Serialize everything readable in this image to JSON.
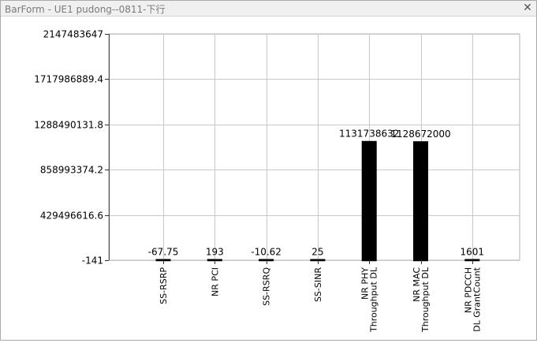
{
  "window": {
    "title": "BarForm - UE1 pudong--0811-下行",
    "close_glyph": "✕",
    "close_icon": "close-icon"
  },
  "chart_data": {
    "type": "bar",
    "title": "",
    "xlabel": "",
    "ylabel": "",
    "categories": [
      "SS-RSRP",
      "NR PCI",
      "SS-RSRQ",
      "SS-SINR",
      "NR PHY Throughput DL",
      "NR MAC Throughput DL",
      "NR PDCCH DL GrantCount"
    ],
    "values": [
      -67.75,
      193,
      -10.62,
      25,
      1131738632,
      1128672000,
      1601
    ],
    "value_labels": [
      "-67.75",
      "193",
      "-10.62",
      "25",
      "1131738632",
      "1128672000",
      "1601"
    ],
    "ylim": [
      -141,
      2147483647
    ],
    "yticks": [
      -141,
      429496616.6,
      858993374.2,
      1288490131.8,
      1717986889.4,
      2147483647
    ],
    "ytick_labels": [
      "-141",
      "429496616.6",
      "858993374.2",
      "1288490131.8",
      "1717986889.4",
      "2147483647"
    ],
    "grid": true,
    "legend": "none",
    "bar_color": "#000000",
    "grid_color": "#c8c8c8"
  }
}
